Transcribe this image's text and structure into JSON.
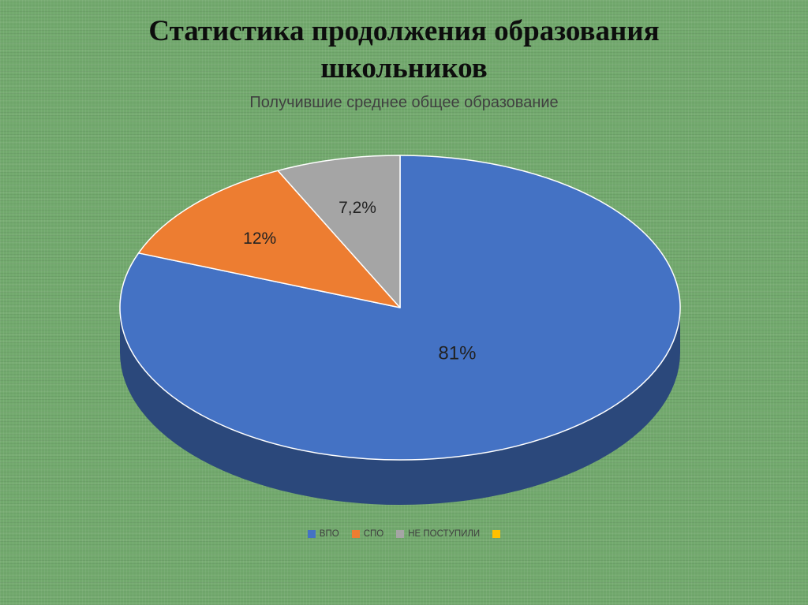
{
  "slide": {
    "title": "Статистика продолжения образования школьников",
    "background_color": "#72a96d"
  },
  "chart_data": {
    "type": "pie",
    "style": "3d-pie",
    "title": "Получившие среднее общее образование",
    "categories": [
      "ВПО",
      "СПО",
      "НЕ ПОСТУПИЛИ"
    ],
    "values": [
      81,
      12,
      7.2
    ],
    "data_labels": [
      "81%",
      "12%",
      "7,2%"
    ],
    "colors": [
      "#4472c4",
      "#ed7d31",
      "#a5a5a5"
    ],
    "data_label_color": "#222222",
    "slice_border_color": "#ffffff",
    "start_angle_deg": 0,
    "direction": "clockwise",
    "legend": {
      "position": "bottom",
      "entries": [
        {
          "label": "ВПО",
          "color": "#4472c4"
        },
        {
          "label": "СПО",
          "color": "#ed7d31"
        },
        {
          "label": "НЕ ПОСТУПИЛИ",
          "color": "#a5a5a5"
        },
        {
          "label": "",
          "color": "#ffc000"
        }
      ]
    }
  }
}
